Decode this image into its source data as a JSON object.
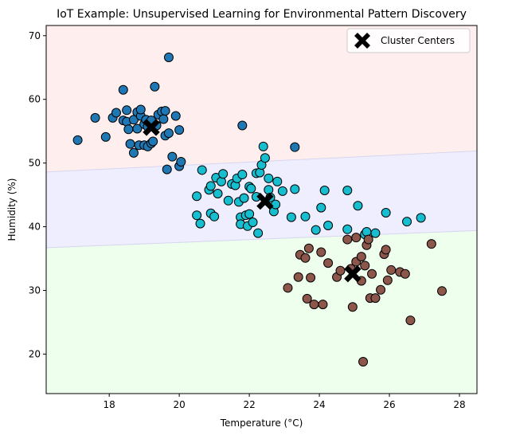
{
  "chart_data": {
    "type": "scatter",
    "title": "IoT Example: Unsupervised Learning for Environmental Pattern Discovery",
    "xlabel": "Temperature (°C)",
    "ylabel": "Humidity (%)",
    "xlim": [
      16.2,
      28.5
    ],
    "ylim": [
      13.8,
      71.6
    ],
    "xticks": [
      18,
      20,
      22,
      24,
      26,
      28
    ],
    "yticks": [
      20,
      30,
      40,
      50,
      60,
      70
    ],
    "grid": false,
    "legend_position": "top-right",
    "legend": [
      {
        "label": "Cluster Centers",
        "marker": "X",
        "color": "#000000"
      }
    ],
    "background_regions": [
      {
        "color": "#ffeeee",
        "boundary_lower": [
          [
            16.2,
            48.6
          ],
          [
            28.5,
            51.9
          ]
        ]
      },
      {
        "color": "#eeeeff",
        "boundary_lower": [
          [
            16.2,
            36.7
          ],
          [
            28.5,
            39.4
          ]
        ]
      },
      {
        "color": "#eeffee",
        "boundary_lower": null
      }
    ],
    "series": [
      {
        "color": "#1f77b4",
        "points": [
          [
            17.1,
            53.6
          ],
          [
            17.6,
            57.1
          ],
          [
            17.9,
            54.1
          ],
          [
            18.1,
            57.1
          ],
          [
            18.2,
            57.9
          ],
          [
            18.4,
            56.7
          ],
          [
            18.4,
            61.5
          ],
          [
            18.5,
            56.5
          ],
          [
            18.5,
            58.3
          ],
          [
            18.55,
            55.3
          ],
          [
            18.6,
            53.0
          ],
          [
            18.7,
            56.8
          ],
          [
            18.7,
            51.6
          ],
          [
            18.8,
            58.0
          ],
          [
            18.8,
            55.4
          ],
          [
            18.85,
            52.8
          ],
          [
            18.9,
            57.4
          ],
          [
            18.9,
            58.4
          ],
          [
            19.0,
            56.1
          ],
          [
            19.0,
            52.8
          ],
          [
            19.05,
            56.8
          ],
          [
            19.1,
            55.7
          ],
          [
            19.1,
            52.6
          ],
          [
            19.2,
            56.7
          ],
          [
            19.2,
            53.1
          ],
          [
            19.25,
            53.4
          ],
          [
            19.3,
            62.0
          ],
          [
            19.35,
            55.9
          ],
          [
            19.4,
            57.6
          ],
          [
            19.5,
            58.1
          ],
          [
            19.55,
            56.9
          ],
          [
            19.6,
            54.3
          ],
          [
            19.6,
            58.2
          ],
          [
            19.65,
            49.0
          ],
          [
            19.7,
            66.6
          ],
          [
            19.7,
            54.7
          ],
          [
            19.8,
            51.0
          ],
          [
            19.9,
            57.4
          ],
          [
            20.0,
            49.5
          ],
          [
            20.0,
            55.2
          ],
          [
            20.05,
            50.2
          ],
          [
            21.8,
            55.9
          ],
          [
            23.3,
            52.5
          ]
        ]
      },
      {
        "color": "#17becf",
        "points": [
          [
            20.5,
            44.8
          ],
          [
            20.5,
            41.8
          ],
          [
            20.6,
            40.5
          ],
          [
            20.65,
            48.9
          ],
          [
            20.85,
            45.8
          ],
          [
            20.9,
            46.4
          ],
          [
            20.9,
            42.1
          ],
          [
            21.0,
            41.6
          ],
          [
            21.05,
            47.7
          ],
          [
            21.1,
            45.2
          ],
          [
            21.2,
            47.1
          ],
          [
            21.25,
            48.3
          ],
          [
            21.4,
            44.1
          ],
          [
            21.5,
            46.7
          ],
          [
            21.6,
            46.5
          ],
          [
            21.65,
            47.6
          ],
          [
            21.7,
            43.9
          ],
          [
            21.75,
            41.5
          ],
          [
            21.75,
            40.4
          ],
          [
            21.8,
            48.2
          ],
          [
            21.85,
            44.5
          ],
          [
            21.9,
            41.8
          ],
          [
            21.95,
            40.1
          ],
          [
            22.0,
            42.0
          ],
          [
            22.0,
            46.3
          ],
          [
            22.05,
            46.0
          ],
          [
            22.1,
            40.7
          ],
          [
            22.2,
            44.7
          ],
          [
            22.2,
            48.4
          ],
          [
            22.25,
            39.0
          ],
          [
            22.3,
            48.5
          ],
          [
            22.35,
            49.7
          ],
          [
            22.4,
            52.6
          ],
          [
            22.45,
            50.8
          ],
          [
            22.55,
            45.8
          ],
          [
            22.55,
            47.6
          ],
          [
            22.6,
            44.6
          ],
          [
            22.7,
            42.4
          ],
          [
            22.75,
            43.5
          ],
          [
            22.8,
            47.1
          ],
          [
            22.95,
            45.6
          ],
          [
            23.2,
            41.5
          ],
          [
            23.3,
            45.9
          ],
          [
            23.6,
            41.6
          ],
          [
            23.9,
            39.5
          ],
          [
            24.05,
            43.0
          ],
          [
            24.15,
            45.7
          ],
          [
            24.25,
            40.2
          ],
          [
            24.8,
            39.6
          ],
          [
            24.8,
            45.7
          ],
          [
            25.1,
            43.3
          ],
          [
            25.3,
            38.8
          ],
          [
            25.35,
            39.2
          ],
          [
            25.6,
            39.0
          ],
          [
            25.9,
            42.2
          ],
          [
            26.5,
            40.8
          ],
          [
            26.9,
            41.4
          ]
        ]
      },
      {
        "color": "#8c564b",
        "points": [
          [
            23.1,
            30.4
          ],
          [
            23.4,
            32.1
          ],
          [
            23.45,
            35.6
          ],
          [
            23.6,
            35.1
          ],
          [
            23.65,
            28.7
          ],
          [
            23.7,
            36.6
          ],
          [
            23.75,
            32.0
          ],
          [
            23.85,
            27.8
          ],
          [
            24.05,
            36.0
          ],
          [
            24.1,
            27.8
          ],
          [
            24.25,
            34.3
          ],
          [
            24.5,
            32.1
          ],
          [
            24.6,
            33.1
          ],
          [
            24.8,
            38.0
          ],
          [
            24.9,
            33.4
          ],
          [
            24.95,
            27.4
          ],
          [
            25.05,
            34.5
          ],
          [
            25.05,
            38.3
          ],
          [
            25.2,
            35.3
          ],
          [
            25.2,
            31.5
          ],
          [
            25.25,
            18.8
          ],
          [
            25.3,
            33.9
          ],
          [
            25.35,
            37.1
          ],
          [
            25.4,
            38.0
          ],
          [
            25.45,
            28.8
          ],
          [
            25.5,
            32.6
          ],
          [
            25.6,
            28.8
          ],
          [
            25.75,
            30.1
          ],
          [
            25.85,
            35.7
          ],
          [
            25.9,
            36.4
          ],
          [
            25.95,
            31.6
          ],
          [
            26.05,
            33.2
          ],
          [
            26.3,
            32.9
          ],
          [
            26.45,
            32.6
          ],
          [
            26.6,
            25.3
          ],
          [
            27.2,
            37.3
          ],
          [
            27.5,
            29.9
          ]
        ]
      }
    ],
    "centers": [
      [
        19.2,
        55.6
      ],
      [
        22.45,
        44.0
      ],
      [
        24.95,
        32.6
      ]
    ]
  }
}
